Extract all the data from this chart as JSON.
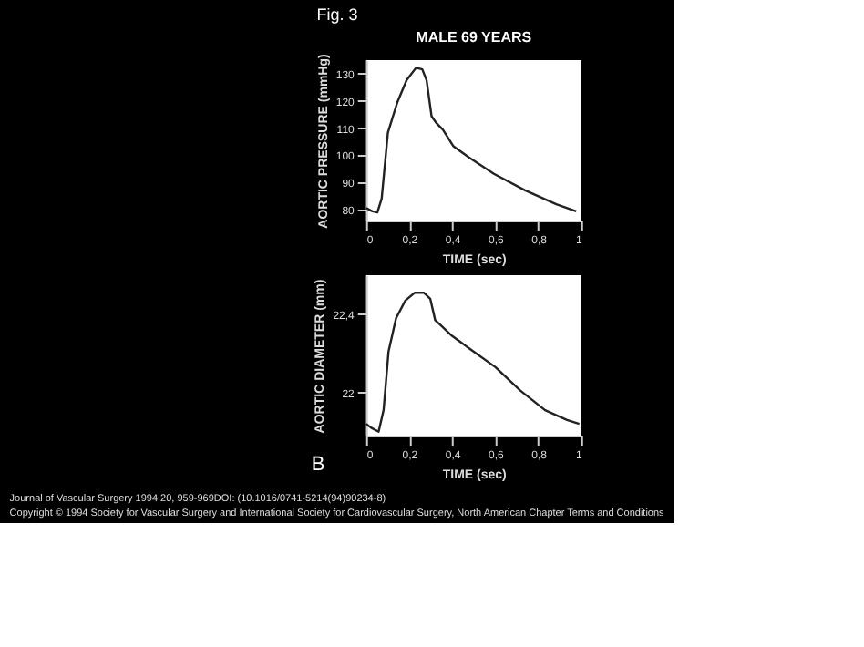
{
  "chart_data": [
    {
      "type": "line",
      "title": "MALE 69 YEARS",
      "annotations": [
        "Fig. 3"
      ],
      "xlabel": "TIME (sec)",
      "ylabel": "AORTIC PRESSURE (mmHg)",
      "x": [
        0,
        0.029,
        0.052,
        0.072,
        0.101,
        0.145,
        0.188,
        0.232,
        0.261,
        0.281,
        0.304,
        0.325,
        0.357,
        0.406,
        0.478,
        0.594,
        0.739,
        0.884,
        0.977
      ],
      "series": [
        {
          "color": "#222222",
          "values": [
            80.6,
            79.4,
            79.0,
            84,
            108.3,
            119.5,
            127.6,
            132.2,
            131.6,
            127.6,
            114.4,
            112,
            109.4,
            103.3,
            99.2,
            93.2,
            87.1,
            82,
            79.4
          ]
        }
      ],
      "xlim": [
        0,
        1
      ],
      "xticks": [
        {
          "value": 0,
          "label": "0"
        },
        {
          "value": 0.2,
          "label": "0,2"
        },
        {
          "value": 0.4,
          "label": "0,4"
        },
        {
          "value": 0.6,
          "label": "0,6"
        },
        {
          "value": 0.8,
          "label": "0,8"
        },
        {
          "value": 1,
          "label": "1"
        }
      ],
      "ylim": [
        76,
        135
      ],
      "yticks": [
        80,
        90,
        100,
        110,
        120,
        130
      ],
      "grid": false,
      "marker": "none",
      "line_style": "solid"
    },
    {
      "type": "line",
      "annotations": [
        "B",
        "Journal of Vascular Surgery 1994 20, 959-969DOI: (10.1016/0741-5214(94)90234-8)",
        "Copyright © 1994 Society for Vascular Surgery and International Society for Cardiovascular Surgery, North American Chapter Terms and Conditions"
      ],
      "xlabel": "TIME (sec)",
      "ylabel": "AORTIC DIAMETER (mm)",
      "x": [
        0,
        0.023,
        0.058,
        0.081,
        0.104,
        0.139,
        0.182,
        0.225,
        0.269,
        0.298,
        0.321,
        0.341,
        0.399,
        0.486,
        0.601,
        0.717,
        0.832,
        0.934,
        0.991
      ],
      "series": [
        {
          "color": "#222222",
          "values": [
            21.84,
            21.82,
            21.8,
            21.91,
            22.21,
            22.38,
            22.47,
            22.51,
            22.51,
            22.48,
            22.37,
            22.35,
            22.29,
            22.22,
            22.13,
            22.01,
            21.91,
            21.86,
            21.84
          ]
        }
      ],
      "xlim": [
        0,
        1
      ],
      "xticks": [
        {
          "value": 0,
          "label": "0"
        },
        {
          "value": 0.2,
          "label": "0,2"
        },
        {
          "value": 0.4,
          "label": "0,4"
        },
        {
          "value": 0.6,
          "label": "0,6"
        },
        {
          "value": 0.8,
          "label": "0,8"
        },
        {
          "value": 1,
          "label": "1"
        }
      ],
      "ylim": [
        21.78,
        22.6
      ],
      "yticks": [
        22,
        {
          "value": 22.4,
          "label": "22,4"
        }
      ],
      "grid": false,
      "marker": "none",
      "line_style": "solid"
    }
  ]
}
